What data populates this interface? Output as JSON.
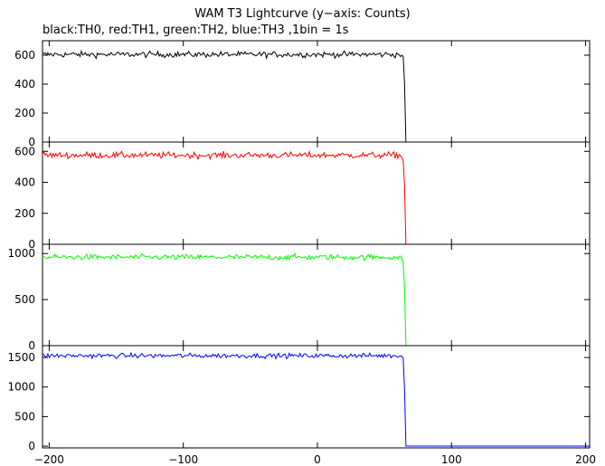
{
  "chart_data": {
    "type": "line",
    "title": "WAM T3 Lightcurve (y−axis: Counts)",
    "subtitle": "black:TH0, red:TH1, green:TH2, blue:TH3 ,1bin = 1s",
    "xlabel": "",
    "ylabel": "",
    "xlim": [
      -205,
      203
    ],
    "x_ticks": [
      -200,
      -100,
      0,
      100,
      200
    ],
    "x_tick_labels": [
      "−200",
      "−100",
      "0",
      "100",
      "200"
    ],
    "grid": false,
    "drop_time": 65,
    "series": [
      {
        "name": "TH0",
        "color": "#000000",
        "ylim": [
          0,
          700
        ],
        "y_ticks": [
          0,
          200,
          400,
          600
        ],
        "plateau_mean": 605,
        "noise": 20,
        "transition": [
          [
            63,
            600
          ],
          [
            64,
            590
          ],
          [
            65,
            400
          ],
          [
            66,
            0
          ]
        ],
        "after_level": 0
      },
      {
        "name": "TH1",
        "color": "#ff0000",
        "ylim": [
          0,
          660
        ],
        "y_ticks": [
          0,
          200,
          400,
          600
        ],
        "plateau_mean": 575,
        "noise": 20,
        "transition": [
          [
            63,
            560
          ],
          [
            64,
            540
          ],
          [
            65,
            380
          ],
          [
            66,
            0
          ]
        ],
        "after_level": 0
      },
      {
        "name": "TH2",
        "color": "#00ff00",
        "ylim": [
          0,
          1100
        ],
        "y_ticks": [
          0,
          500,
          1000
        ],
        "plateau_mean": 960,
        "noise": 30,
        "transition": [
          [
            63,
            950
          ],
          [
            64,
            900
          ],
          [
            65,
            620
          ],
          [
            66,
            0
          ]
        ],
        "after_level": 0
      },
      {
        "name": "TH3",
        "color": "#0000ff",
        "ylim": [
          -30,
          1700
        ],
        "y_ticks": [
          0,
          500,
          1000,
          1500
        ],
        "plateau_mean": 1530,
        "noise": 40,
        "transition": [
          [
            63,
            1520
          ],
          [
            64,
            1480
          ],
          [
            65,
            950
          ],
          [
            66,
            0
          ]
        ],
        "after_level": 0
      }
    ]
  }
}
